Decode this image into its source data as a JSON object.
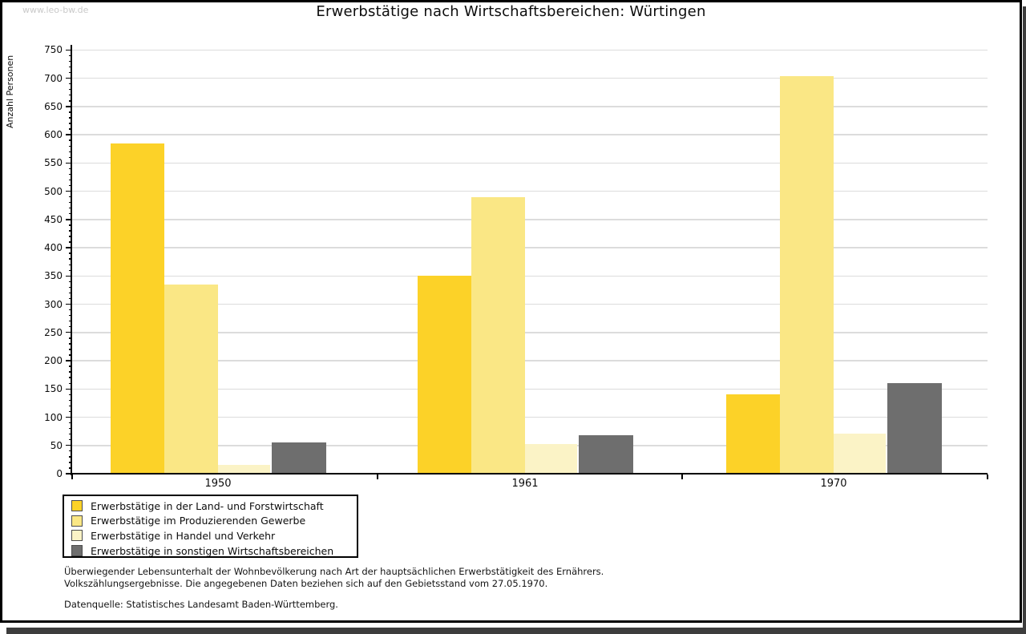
{
  "watermark": "www.leo-bw.de",
  "title": "Erwerbstätige nach Wirtschaftsbereichen: Würtingen",
  "chart_data": {
    "type": "bar",
    "title": "Erwerbstätige nach Wirtschaftsbereichen: Würtingen",
    "xlabel": "",
    "ylabel": "Anzahl Personen",
    "categories": [
      "1950",
      "1961",
      "1970"
    ],
    "series": [
      {
        "name": "Erwerbstätige in der Land- und Forstwirtschaft",
        "color": "#FCD228",
        "values": [
          584,
          350,
          140
        ]
      },
      {
        "name": "Erwerbstätige im Produzierenden Gewerbe",
        "color": "#FAE785",
        "values": [
          335,
          489,
          704
        ]
      },
      {
        "name": "Erwerbstätige in Handel und Verkehr",
        "color": "#FBF3C6",
        "values": [
          15,
          52,
          71
        ]
      },
      {
        "name": "Erwerbstätige in sonstigen Wirtschaftsbereichen",
        "color": "#6E6E6E",
        "values": [
          55,
          68,
          160
        ]
      }
    ],
    "ylim": [
      0,
      750
    ],
    "ytick_step": 50,
    "yminor_step": 10,
    "grid": true,
    "legend_position": "bottom-left",
    "gridline_color": "#DCDCDC"
  },
  "footnotes": {
    "line1": "Überwiegender Lebensunterhalt der Wohnbevölkerung nach Art der hauptsächlichen Erwerbstätigkeit des Ernährers.",
    "line2": "Volkszählungsergebnisse. Die angegebenen Daten beziehen sich auf den Gebietsstand vom 27.05.1970.",
    "source": "Datenquelle: Statistisches Landesamt Baden-Württemberg."
  }
}
